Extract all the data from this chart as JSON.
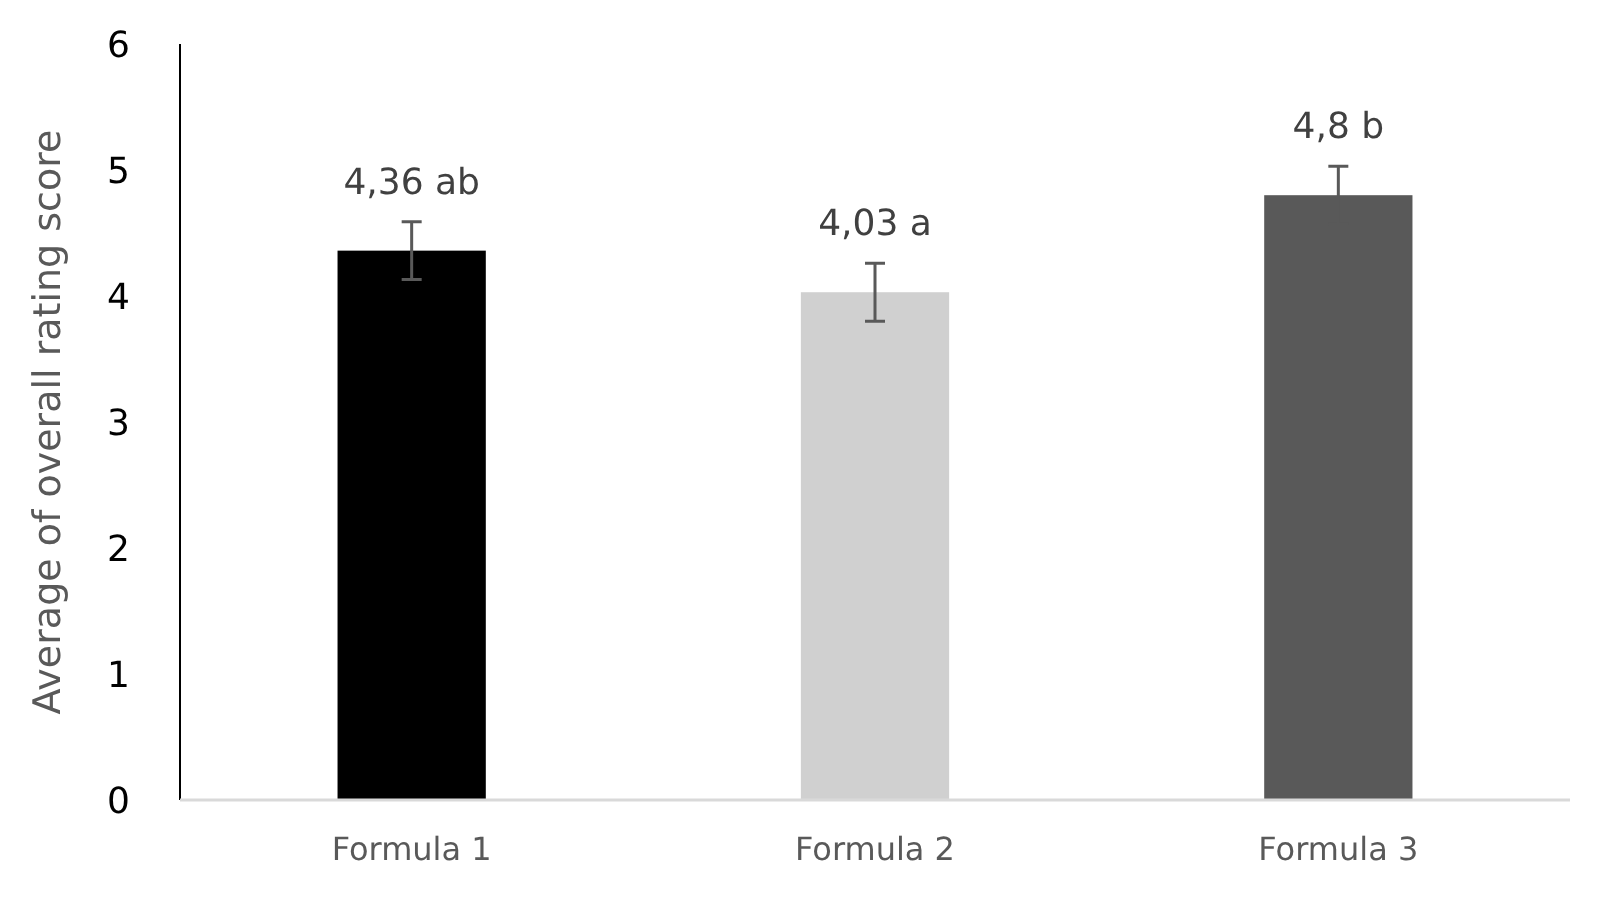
{
  "chart_data": {
    "type": "bar",
    "ylabel": "Average of overall rating score",
    "categories": [
      "Formula 1",
      "Formula 2",
      "Formula 3"
    ],
    "values": [
      4.36,
      4.03,
      4.8
    ],
    "colors": [
      "#000000",
      "#d0d0d0",
      "#595959"
    ],
    "errors": [
      0.23,
      0.23,
      0.23
    ],
    "value_labels": [
      "4,36 ab",
      "4,03 a",
      "4,8 b"
    ],
    "ylim": [
      0,
      6
    ],
    "yticks": [
      0,
      1,
      2,
      3,
      4,
      5,
      6
    ],
    "grid": false
  }
}
